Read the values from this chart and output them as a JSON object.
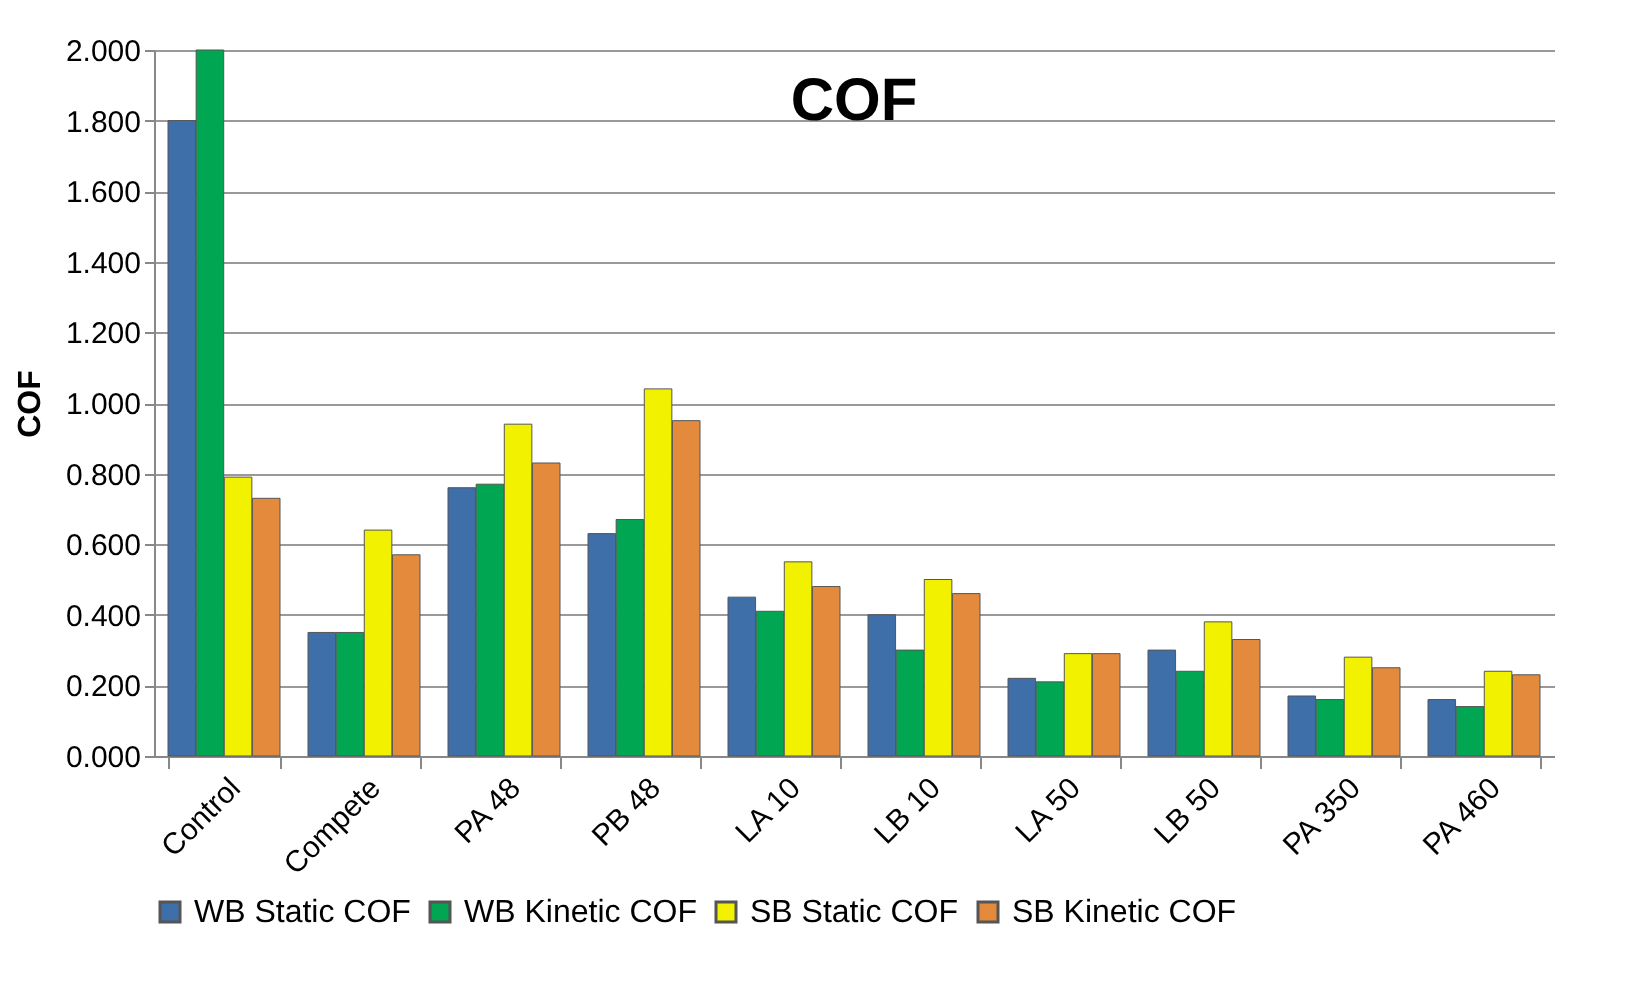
{
  "chart_data": {
    "type": "bar",
    "title": "COF",
    "ylabel": "COF",
    "categories": [
      "Control",
      "Compete",
      "PA 48",
      "PB 48",
      "LA 10",
      "LB 10",
      "LA 50",
      "LB 50",
      "PA 350",
      "PA 460"
    ],
    "series": [
      {
        "name": "WB Static COF",
        "color": "#3f6fa8",
        "values": [
          1.8,
          0.35,
          0.76,
          0.63,
          0.45,
          0.4,
          0.22,
          0.3,
          0.17,
          0.16
        ]
      },
      {
        "name": "WB Kinetic COF",
        "color": "#00a651",
        "values": [
          2.0,
          0.35,
          0.77,
          0.67,
          0.41,
          0.3,
          0.21,
          0.24,
          0.16,
          0.14
        ]
      },
      {
        "name": "SB Static COF",
        "color": "#f2f200",
        "values": [
          0.79,
          0.64,
          0.94,
          1.04,
          0.55,
          0.5,
          0.29,
          0.38,
          0.28,
          0.24
        ]
      },
      {
        "name": "SB Kinetic COF",
        "color": "#e38a3c",
        "values": [
          0.73,
          0.57,
          0.83,
          0.95,
          0.48,
          0.46,
          0.29,
          0.33,
          0.25,
          0.23
        ]
      }
    ],
    "ylim": [
      0,
      2
    ],
    "yticks": [
      {
        "value": 0,
        "label": "0.000"
      },
      {
        "value": 0.2,
        "label": "0.200"
      },
      {
        "value": 0.4,
        "label": "0.400"
      },
      {
        "value": 0.6,
        "label": "0.600"
      },
      {
        "value": 0.8,
        "label": "0.800"
      },
      {
        "value": 1,
        "label": "1.000"
      },
      {
        "value": 1.2,
        "label": "1.200"
      },
      {
        "value": 1.4,
        "label": "1.400"
      },
      {
        "value": 1.6,
        "label": "1.600"
      },
      {
        "value": 1.8,
        "label": "1.800"
      },
      {
        "value": 2,
        "label": "2.000"
      }
    ],
    "grid": "y",
    "legend": "bottom"
  }
}
